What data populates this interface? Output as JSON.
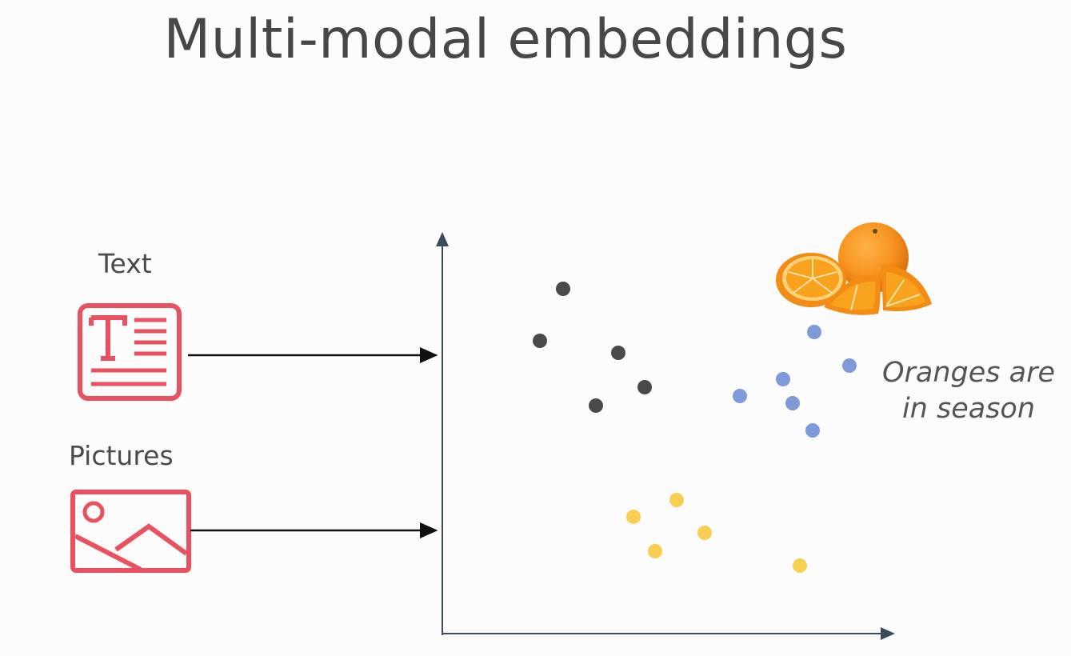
{
  "title": "Multi-modal embeddings",
  "inputs": {
    "text_label": "Text",
    "pictures_label": "Pictures"
  },
  "caption": {
    "line1": "Oranges are",
    "line2": "in season"
  },
  "icons": [
    "text-document-icon",
    "picture-icon",
    "oranges-image"
  ],
  "colors": {
    "icon_red": "#ea5160",
    "axis": "#3d4a5c",
    "cluster_dark": "#4a4a4a",
    "cluster_blue": "#7f9ad8",
    "cluster_yellow": "#f8cf53",
    "orange": "#f7931e"
  }
}
